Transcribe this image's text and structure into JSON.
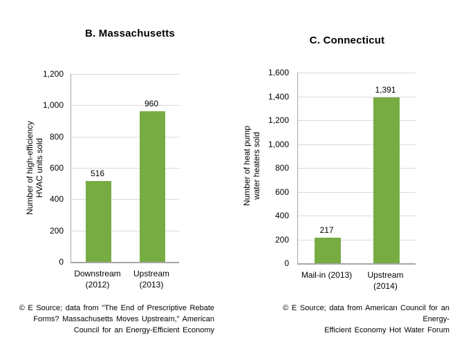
{
  "colors": {
    "bar": "#77AC43",
    "gridline": "#D9D9D9",
    "axis": "#A6A6A6",
    "text": "#000000",
    "background": "#FFFFFF"
  },
  "chart_data": [
    {
      "type": "bar",
      "title": "B. Massachusetts",
      "categories": [
        [
          "Downstream",
          "(2012)"
        ],
        [
          "Upstream",
          "(2013)"
        ]
      ],
      "values": [
        516,
        960
      ],
      "value_labels": [
        "516",
        "960"
      ],
      "ylabel_lines": [
        "Number of high-efficiency",
        "HVAC units sold"
      ],
      "ylim": [
        0,
        1200
      ],
      "ytick_step": 200,
      "ytick_labels": [
        "0",
        "200",
        "400",
        "600",
        "800",
        "1,000",
        "1,200"
      ],
      "grid": "horizontal",
      "legend": "none",
      "source_lines": [
        "© E Source; data from \"The End of Prescriptive Rebate",
        "Forms? Massachusetts Moves Upstream,\" American",
        "Council for an Energy-Efficient Economy"
      ]
    },
    {
      "type": "bar",
      "title": "C. Connecticut",
      "categories": [
        [
          "Mail-in (2013)"
        ],
        [
          "Upstream",
          "(2014)"
        ]
      ],
      "values": [
        217,
        1391
      ],
      "value_labels": [
        "217",
        "1,391"
      ],
      "ylabel_lines": [
        "Number of heat pump",
        "water heaters sold"
      ],
      "ylim": [
        0,
        1600
      ],
      "ytick_step": 200,
      "ytick_labels": [
        "0",
        "200",
        "400",
        "600",
        "800",
        "1,000",
        "1,200",
        "1,400",
        "1,600"
      ],
      "grid": "horizontal",
      "legend": "none",
      "source_lines": [
        "© E Source; data from American Council for an Energy-",
        "Efficient Economy Hot Water Forum"
      ]
    }
  ]
}
